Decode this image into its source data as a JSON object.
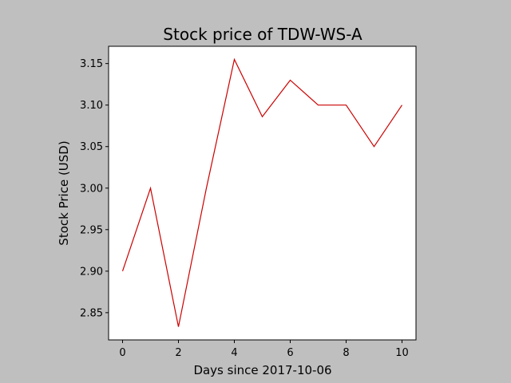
{
  "chart_data": {
    "type": "line",
    "title": "Stock price of TDW-WS-A",
    "xlabel": "Days since 2017-10-06",
    "ylabel": "Stock Price (USD)",
    "x": [
      0,
      1,
      2,
      3,
      4,
      5,
      6,
      7,
      8,
      9,
      10
    ],
    "series": [
      {
        "values": [
          2.9,
          3.0,
          2.833,
          3.0,
          3.155,
          3.086,
          3.13,
          3.1,
          3.1,
          3.05,
          3.1
        ],
        "color": "#cc0000"
      }
    ],
    "xlim": [
      -0.5,
      10.5
    ],
    "ylim": [
      2.8172,
      3.1708
    ],
    "xticks": [
      0,
      2,
      4,
      6,
      8,
      10
    ],
    "xtick_labels": [
      "0",
      "2",
      "4",
      "6",
      "8",
      "10"
    ],
    "yticks": [
      2.85,
      2.9,
      2.95,
      3.0,
      3.05,
      3.1,
      3.15
    ],
    "ytick_labels": [
      "2.85",
      "2.90",
      "2.95",
      "3.00",
      "3.05",
      "3.10",
      "3.15"
    ],
    "grid": false,
    "legend": "none",
    "background_color": "#bfbfbf",
    "plot_background_color": "#ffffff"
  }
}
